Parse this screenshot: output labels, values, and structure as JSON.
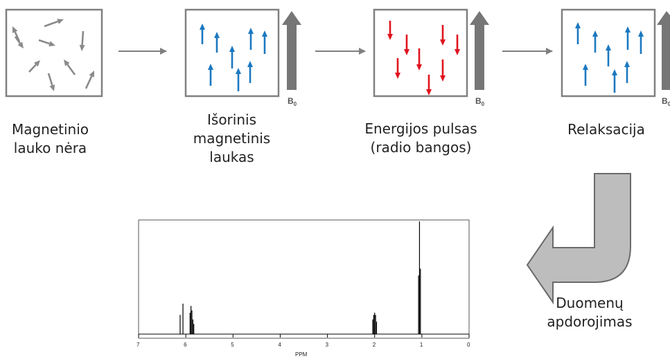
{
  "stages": [
    {
      "caption": "Magnetinio\nlauko nėra",
      "field_label": "",
      "field_sub": ""
    },
    {
      "caption": "Išorinis\nmagnetinis\nlaukas",
      "field_label": "B",
      "field_sub": "0"
    },
    {
      "caption": "Energijos pulsas\n(radio bangos)",
      "field_label": "B",
      "field_sub": "0"
    },
    {
      "caption": "Relaksacija",
      "field_label": "B",
      "field_sub": "0"
    }
  ],
  "processing_label": "Duomenų\napdorojimas",
  "spectrum": {
    "xlabel": "PPM",
    "ticks": [
      "7",
      "6",
      "5",
      "4",
      "3",
      "2",
      "1",
      "0"
    ],
    "peaks": [
      {
        "ppm": 6.12,
        "height": 0.17
      },
      {
        "ppm": 6.06,
        "height": 0.27
      },
      {
        "ppm": 5.91,
        "height": 0.19
      },
      {
        "ppm": 5.89,
        "height": 0.25
      },
      {
        "ppm": 5.87,
        "height": 0.21
      },
      {
        "ppm": 5.85,
        "height": 0.13
      },
      {
        "ppm": 5.83,
        "height": 0.09
      },
      {
        "ppm": 2.04,
        "height": 0.13
      },
      {
        "ppm": 2.02,
        "height": 0.17
      },
      {
        "ppm": 2.0,
        "height": 0.19
      },
      {
        "ppm": 1.98,
        "height": 0.17
      },
      {
        "ppm": 1.96,
        "height": 0.11
      },
      {
        "ppm": 1.07,
        "height": 0.52
      },
      {
        "ppm": 1.05,
        "height": 1.0
      },
      {
        "ppm": 1.03,
        "height": 0.58
      }
    ]
  },
  "colors": {
    "box_border": "#808080",
    "spin_gray": "#8a8a8a",
    "spin_blue": "#1b78c0",
    "spin_red": "#e0141e",
    "field_arrow": "#767676",
    "process_arrow": "#bdbdbd",
    "process_arrow_border": "#6a6a6a"
  }
}
